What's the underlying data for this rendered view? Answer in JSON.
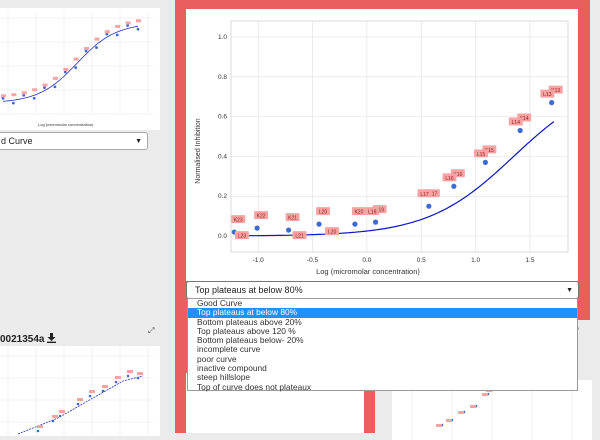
{
  "main_plot": {
    "y_axis_label": "Normalised Inhibition",
    "x_axis_label": "Log (micromolar concentration)",
    "x_ticks": [
      "-1.0",
      "-0.5",
      "0.0",
      "0.5",
      "1.0",
      "1.5"
    ],
    "y_ticks": [
      "0.0",
      "0.2",
      "0.4",
      "0.6",
      "0.8",
      "1.0"
    ]
  },
  "chart_data": {
    "type": "scatter",
    "xlabel": "Log (micromolar concentration)",
    "ylabel": "Normalised Inhibition",
    "xlim": [
      -1.25,
      1.85
    ],
    "ylim": [
      -0.08,
      1.08
    ],
    "points": [
      {
        "x": -1.22,
        "y": 0.02,
        "label": "K23"
      },
      {
        "x": -1.01,
        "y": 0.04,
        "label": "K22"
      },
      {
        "x": -0.72,
        "y": 0.03,
        "label": "K21"
      },
      {
        "x": -0.44,
        "y": 0.06,
        "label": "L20"
      },
      {
        "x": -0.11,
        "y": 0.06,
        "label": "K20"
      },
      {
        "x": 0.08,
        "y": 0.07,
        "label": "K19"
      },
      {
        "x": 0.57,
        "y": 0.15,
        "label": "K17"
      },
      {
        "x": 0.8,
        "y": 0.25,
        "label": "K16"
      },
      {
        "x": 1.09,
        "y": 0.37,
        "label": "K15"
      },
      {
        "x": 1.41,
        "y": 0.53,
        "label": "K14"
      },
      {
        "x": 1.7,
        "y": 0.67,
        "label": "K13"
      }
    ],
    "extra_labels": [
      {
        "x": -1.15,
        "y": 0.0,
        "label": "L23"
      },
      {
        "x": -0.62,
        "y": 0.0,
        "label": "L21"
      },
      {
        "x": -0.32,
        "y": 0.02,
        "label": "L20"
      },
      {
        "x": 0.05,
        "y": 0.12,
        "label": "L18"
      },
      {
        "x": 0.53,
        "y": 0.21,
        "label": "L17"
      },
      {
        "x": 0.76,
        "y": 0.29,
        "label": "L16"
      },
      {
        "x": 1.05,
        "y": 0.41,
        "label": "L15"
      },
      {
        "x": 1.37,
        "y": 0.57,
        "label": "L14"
      },
      {
        "x": 1.66,
        "y": 0.71,
        "label": "L13"
      }
    ],
    "fit_curve": {
      "bottom": 0.0,
      "top": 0.8,
      "logIC50": 1.35,
      "hill": 1.1
    },
    "colors": {
      "points": "#3d6bd1",
      "labels": "#f5a3a3",
      "fit": "#0a16c7"
    }
  },
  "main_select": {
    "selected": "Top plateaus at below 80%"
  },
  "dropdown": {
    "options": [
      "Good Curve",
      "Top plateaus at below 80%",
      "Bottom plateaus above 20%",
      "Top plateaus above 120 %",
      "Bottom plateaus below- 20%",
      "incomplete curve",
      "poor curve",
      "inactive compound",
      "steep hillslope",
      "Top of curve does not plateaux"
    ],
    "selected_index": 1
  },
  "left_top": {
    "select_text": "d Curve",
    "x_axis_label": "Log (micromolar concentration)"
  },
  "left_bottom": {
    "compound_id": "0021354a"
  },
  "colors": {
    "accent_red": "#e95f5f",
    "selection_blue": "#1e90ff"
  }
}
